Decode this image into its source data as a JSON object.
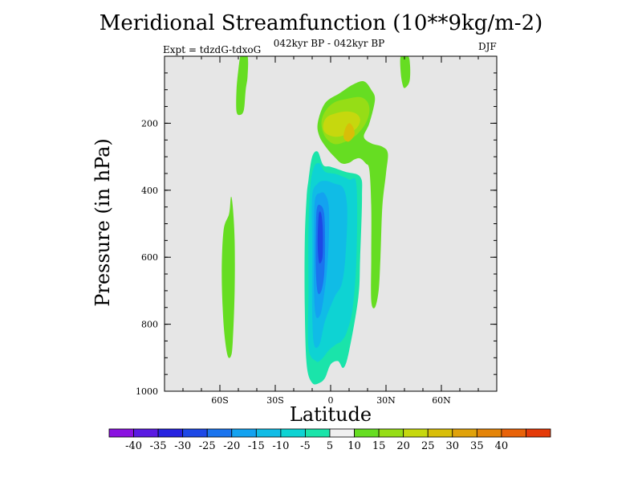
{
  "chart_data": {
    "type": "heatmap",
    "title": "Meridional Streamfunction (10**9kg/m-2)",
    "subtitle": "042kyr BP - 042kyr BP",
    "experiment": "Expt = tdzdG-tdxoG",
    "season": "DJF",
    "xlabel": "Latitude",
    "ylabel": "Pressure (in hPa)",
    "xlim": [
      -90,
      90
    ],
    "ylim": [
      1000,
      0
    ],
    "x_ticks": [
      {
        "value": -60,
        "label": "60S"
      },
      {
        "value": -30,
        "label": "30S"
      },
      {
        "value": 0,
        "label": "0"
      },
      {
        "value": 30,
        "label": "30N"
      },
      {
        "value": 60,
        "label": "60N"
      }
    ],
    "y_ticks": [
      {
        "value": 200,
        "label": "200"
      },
      {
        "value": 400,
        "label": "400"
      },
      {
        "value": 600,
        "label": "600"
      },
      {
        "value": 800,
        "label": "800"
      },
      {
        "value": 1000,
        "label": "1000"
      }
    ],
    "background_color": "#e6e6e6",
    "colorbar": {
      "labels": [
        "-40",
        "-35",
        "-30",
        "-25",
        "-20",
        "-15",
        "-10",
        "-5",
        "5",
        "10",
        "15",
        "20",
        "25",
        "30",
        "35",
        "40"
      ],
      "colors": [
        "#8a12e0",
        "#5a1ae2",
        "#2622e0",
        "#1d48e6",
        "#1a74ee",
        "#13a2f0",
        "#10bce6",
        "#0ed3d3",
        "#1ae4aa",
        "#f0f0f0",
        "#66dd22",
        "#96dd16",
        "#c6d80e",
        "#d8be08",
        "#e0a20a",
        "#e48408",
        "#e86208",
        "#e43a08"
      ]
    },
    "regions": [
      {
        "name": "positive-5-10-upper-left-strip",
        "level_range": [
          5,
          10
        ],
        "color": "#66dd22",
        "points": [
          [
            -48.5,
            0
          ],
          [
            -45,
            0
          ],
          [
            -45,
            60
          ],
          [
            -46,
            100
          ],
          [
            -47,
            160
          ],
          [
            -49,
            175
          ],
          [
            -51,
            165
          ],
          [
            -51,
            100
          ],
          [
            -50,
            40
          ],
          [
            -49,
            0
          ]
        ]
      },
      {
        "name": "positive-5-10-left-column",
        "level_range": [
          5,
          10
        ],
        "color": "#66dd22",
        "points": [
          [
            -55,
            470
          ],
          [
            -54,
            420
          ],
          [
            -53,
            450
          ],
          [
            -52,
            550
          ],
          [
            -52,
            700
          ],
          [
            -53,
            850
          ],
          [
            -54,
            895
          ],
          [
            -56,
            890
          ],
          [
            -58,
            800
          ],
          [
            -59,
            650
          ],
          [
            -58,
            520
          ]
        ]
      },
      {
        "name": "positive-5-10-upper-right-blob",
        "level_range": [
          5,
          10
        ],
        "color": "#66dd22",
        "points": [
          [
            38,
            0
          ],
          [
            42,
            0
          ],
          [
            43,
            25
          ],
          [
            43,
            65
          ],
          [
            42,
            85
          ],
          [
            40,
            95
          ],
          [
            39,
            85
          ],
          [
            38,
            50
          ]
        ]
      },
      {
        "name": "positive-5-10-main-cell",
        "level_range": [
          5,
          10
        ],
        "color": "#66dd22",
        "points": [
          [
            -7,
            200
          ],
          [
            -3,
            140
          ],
          [
            5,
            110
          ],
          [
            12,
            85
          ],
          [
            18,
            75
          ],
          [
            22,
            100
          ],
          [
            24,
            130
          ],
          [
            21,
            200
          ],
          [
            18,
            240
          ],
          [
            22,
            260
          ],
          [
            28,
            270
          ],
          [
            31,
            290
          ],
          [
            30,
            350
          ],
          [
            28,
            450
          ],
          [
            27,
            600
          ],
          [
            26,
            700
          ],
          [
            24,
            750
          ],
          [
            22,
            730
          ],
          [
            22,
            600
          ],
          [
            22,
            450
          ],
          [
            21,
            340
          ],
          [
            19,
            320
          ],
          [
            16,
            305
          ],
          [
            13,
            308
          ],
          [
            10,
            318
          ],
          [
            6,
            320
          ],
          [
            2,
            300
          ],
          [
            -2,
            275
          ],
          [
            -6,
            240
          ]
        ]
      },
      {
        "name": "positive-10-15-core",
        "level_range": [
          10,
          15
        ],
        "color": "#96dd16",
        "points": [
          [
            -5,
            200
          ],
          [
            -3,
            165
          ],
          [
            2,
            138
          ],
          [
            9,
            127
          ],
          [
            16,
            122
          ],
          [
            20,
            137
          ],
          [
            21,
            165
          ],
          [
            19,
            200
          ],
          [
            14,
            235
          ],
          [
            8,
            255
          ],
          [
            2,
            262
          ],
          [
            -3,
            240
          ]
        ]
      },
      {
        "name": "positive-15-20-core",
        "level_range": [
          15,
          20
        ],
        "color": "#c6d80e",
        "points": [
          [
            -4,
            205
          ],
          [
            -2,
            182
          ],
          [
            3,
            170
          ],
          [
            9,
            165
          ],
          [
            14,
            172
          ],
          [
            16,
            190
          ],
          [
            14,
            215
          ],
          [
            8,
            235
          ],
          [
            2,
            240
          ],
          [
            -3,
            228
          ]
        ]
      },
      {
        "name": "positive-20-25-core",
        "level_range": [
          20,
          25
        ],
        "color": "#d8be08",
        "points": [
          [
            8,
            215
          ],
          [
            10,
            200
          ],
          [
            12,
            210
          ],
          [
            13,
            232
          ],
          [
            11,
            250
          ],
          [
            9,
            255
          ],
          [
            7,
            242
          ]
        ]
      },
      {
        "name": "negative-5-10-cell",
        "level_range": [
          -10,
          -5
        ],
        "color": "#1ae4aa",
        "points": [
          [
            -12,
            370
          ],
          [
            -10,
            300
          ],
          [
            -7,
            285
          ],
          [
            -4,
            325
          ],
          [
            0,
            330
          ],
          [
            8,
            345
          ],
          [
            16,
            360
          ],
          [
            17,
            420
          ],
          [
            16,
            600
          ],
          [
            15,
            720
          ],
          [
            10,
            880
          ],
          [
            7,
            930
          ],
          [
            4,
            910
          ],
          [
            0,
            920
          ],
          [
            -3,
            960
          ],
          [
            -6,
            975
          ],
          [
            -10,
            975
          ],
          [
            -13,
            920
          ],
          [
            -14,
            750
          ],
          [
            -14,
            550
          ],
          [
            -13,
            420
          ]
        ]
      },
      {
        "name": "negative-10-15-cell",
        "level_range": [
          -15,
          -10
        ],
        "color": "#0ed3d3",
        "points": [
          [
            -11,
            390
          ],
          [
            -9,
            330
          ],
          [
            -6,
            320
          ],
          [
            -3,
            345
          ],
          [
            3,
            352
          ],
          [
            10,
            368
          ],
          [
            14,
            385
          ],
          [
            14,
            600
          ],
          [
            12,
            750
          ],
          [
            9,
            820
          ],
          [
            6,
            850
          ],
          [
            3,
            860
          ],
          [
            -1,
            878
          ],
          [
            -5,
            905
          ],
          [
            -8,
            910
          ],
          [
            -12,
            870
          ],
          [
            -12,
            700
          ],
          [
            -12,
            520
          ]
        ]
      },
      {
        "name": "negative-15-20-cell",
        "level_range": [
          -20,
          -15
        ],
        "color": "#10bce6",
        "points": [
          [
            -10,
            420
          ],
          [
            -7,
            380
          ],
          [
            -3,
            372
          ],
          [
            2,
            380
          ],
          [
            7,
            395
          ],
          [
            9,
            460
          ],
          [
            8,
            600
          ],
          [
            6,
            680
          ],
          [
            2,
            720
          ],
          [
            -3,
            790
          ],
          [
            -6,
            860
          ],
          [
            -9,
            860
          ],
          [
            -10,
            760
          ],
          [
            -10,
            580
          ]
        ]
      },
      {
        "name": "negative-20-25-cell",
        "level_range": [
          -25,
          -20
        ],
        "color": "#13a2f0",
        "points": [
          [
            -8.5,
            430
          ],
          [
            -5.5,
            408
          ],
          [
            -3,
            412
          ],
          [
            -1,
            450
          ],
          [
            -1,
            550
          ],
          [
            -2,
            640
          ],
          [
            -3.5,
            710
          ],
          [
            -5.5,
            770
          ],
          [
            -8,
            775
          ],
          [
            -9,
            700
          ],
          [
            -9,
            550
          ]
        ]
      },
      {
        "name": "negative-25-30-cell",
        "level_range": [
          -30,
          -25
        ],
        "color": "#1a74ee",
        "points": [
          [
            -7.5,
            455
          ],
          [
            -5.5,
            445
          ],
          [
            -3.5,
            470
          ],
          [
            -3,
            560
          ],
          [
            -3.5,
            650
          ],
          [
            -5,
            700
          ],
          [
            -7,
            705
          ],
          [
            -8,
            640
          ],
          [
            -8,
            530
          ]
        ]
      },
      {
        "name": "negative-30-35-core",
        "level_range": [
          -35,
          -30
        ],
        "color": "#1d48e6",
        "points": [
          [
            -6.5,
            475
          ],
          [
            -5.2,
            468
          ],
          [
            -4.3,
            510
          ],
          [
            -4.2,
            580
          ],
          [
            -4.8,
            610
          ],
          [
            -6.3,
            615
          ],
          [
            -7,
            560
          ]
        ]
      }
    ]
  }
}
